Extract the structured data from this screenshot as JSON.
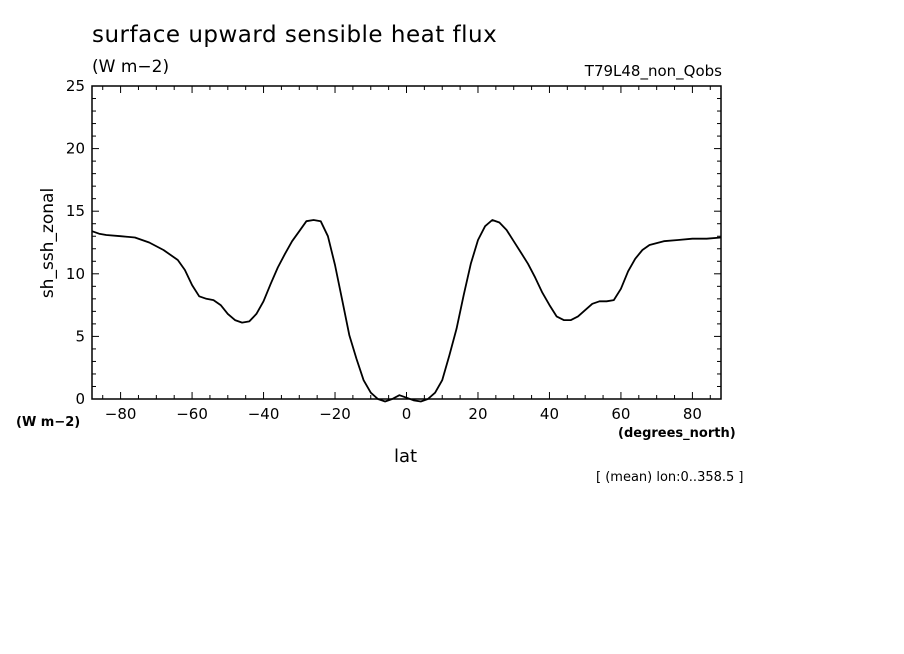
{
  "header": {
    "title": "surface upward sensible heat flux",
    "units": "(W m−2)",
    "run_id": "T79L48_non_Qobs"
  },
  "axes": {
    "y_units": "(W m−2)",
    "x_units": "(degrees_north)",
    "xlabel": "lat",
    "ylabel": "sh_ssh_zonal",
    "mean_note": "[ (mean) lon:0..358.5 ]"
  },
  "chart_data": {
    "type": "line",
    "title": "surface upward sensible heat flux",
    "xlabel": "lat",
    "ylabel": "sh_ssh_zonal",
    "xlim": [
      -88,
      88
    ],
    "ylim": [
      0,
      25
    ],
    "x_ticks": [
      -80,
      -60,
      -40,
      -20,
      0,
      20,
      40,
      60,
      80
    ],
    "x_tick_labels": [
      "−80",
      "−60",
      "−40",
      "−20",
      "0",
      "20",
      "40",
      "60",
      "80"
    ],
    "y_ticks": [
      0,
      5,
      10,
      15,
      20,
      25
    ],
    "y_tick_labels": [
      "0",
      "5",
      "10",
      "15",
      "20",
      "25"
    ],
    "grid": false,
    "series": [
      {
        "color": "#000000",
        "x": [
          -88,
          -86,
          -84,
          -80,
          -76,
          -72,
          -68,
          -64,
          -62,
          -60,
          -58,
          -56,
          -54,
          -52,
          -50,
          -48,
          -46,
          -44,
          -42,
          -40,
          -38,
          -36,
          -34,
          -32,
          -30,
          -28,
          -26,
          -24,
          -22,
          -20,
          -18,
          -16,
          -14,
          -12,
          -10,
          -8,
          -6,
          -4,
          -2,
          0,
          2,
          4,
          6,
          8,
          10,
          12,
          14,
          16,
          18,
          20,
          22,
          24,
          26,
          28,
          30,
          32,
          34,
          36,
          38,
          40,
          42,
          44,
          46,
          48,
          50,
          52,
          54,
          56,
          58,
          60,
          62,
          64,
          66,
          68,
          72,
          76,
          80,
          84,
          88
        ],
        "y": [
          13.4,
          13.2,
          13.1,
          13.0,
          12.9,
          12.5,
          11.9,
          11.1,
          10.3,
          9.1,
          8.2,
          8.0,
          7.9,
          7.5,
          6.8,
          6.3,
          6.1,
          6.2,
          6.8,
          7.8,
          9.2,
          10.5,
          11.6,
          12.6,
          13.4,
          14.2,
          14.3,
          14.2,
          13.0,
          10.7,
          7.9,
          5.1,
          3.2,
          1.5,
          0.5,
          0.0,
          -0.2,
          0.0,
          0.3,
          0.1,
          -0.1,
          -0.2,
          0.0,
          0.5,
          1.5,
          3.5,
          5.6,
          8.3,
          10.8,
          12.7,
          13.8,
          14.3,
          14.1,
          13.5,
          12.6,
          11.7,
          10.8,
          9.7,
          8.5,
          7.5,
          6.6,
          6.3,
          6.3,
          6.6,
          7.1,
          7.6,
          7.8,
          7.8,
          7.9,
          8.8,
          10.2,
          11.2,
          11.9,
          12.3,
          12.6,
          12.7,
          12.8,
          12.8,
          12.9
        ]
      }
    ]
  }
}
